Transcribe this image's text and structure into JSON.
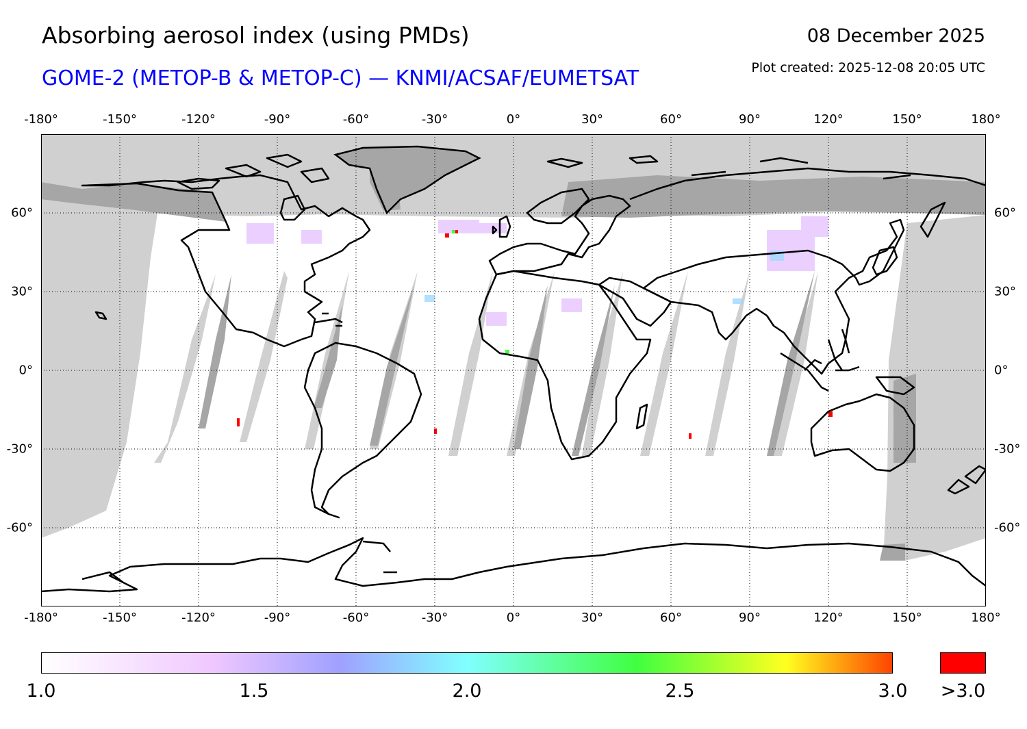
{
  "header": {
    "title": "Absorbing aerosol index (using PMDs)",
    "subtitle": "GOME-2 (METOP-B & METOP-C) — KNMI/ACSAF/EUMETSAT",
    "date": "08 December 2025",
    "created": "Plot created: 2025-12-08 20:05 UTC"
  },
  "map": {
    "projection": "equirectangular",
    "lon_range": [
      -180,
      180
    ],
    "lat_range": [
      -90,
      90
    ],
    "lon_ticks": [
      -180,
      -150,
      -120,
      -90,
      -60,
      -30,
      0,
      30,
      60,
      90,
      120,
      150,
      180
    ],
    "lon_labels": [
      "-180°",
      "-150°",
      "-120°",
      "-90°",
      "-60°",
      "-30°",
      "0°",
      "30°",
      "60°",
      "90°",
      "120°",
      "150°",
      "180°"
    ],
    "lat_ticks": [
      60,
      30,
      0,
      -30,
      -60
    ],
    "lat_labels": [
      "60°",
      "30°",
      "0°",
      "-30°",
      "-60°"
    ],
    "grid": "dotted",
    "colors": {
      "no_data": "#d0d0d0",
      "overlap_dark": "#a6a6a6",
      "coastline": "#000000"
    }
  },
  "colorbar": {
    "stops": [
      {
        "value": 1.0,
        "color": "#ffffff"
      },
      {
        "value": 1.4,
        "color": "#f0c8ff"
      },
      {
        "value": 1.7,
        "color": "#a0a0ff"
      },
      {
        "value": 2.0,
        "color": "#80ffff"
      },
      {
        "value": 2.4,
        "color": "#40ff40"
      },
      {
        "value": 2.75,
        "color": "#ffff20"
      },
      {
        "value": 3.0,
        "color": "#ff4400"
      }
    ],
    "labels": [
      {
        "value": 1.0,
        "text": "1.0"
      },
      {
        "value": 1.5,
        "text": "1.5"
      },
      {
        "value": 2.0,
        "text": "2.0"
      },
      {
        "value": 2.5,
        "text": "2.5"
      },
      {
        "value": 3.0,
        "text": "3.0"
      }
    ],
    "over_label": ">3.0",
    "over_color": "#ff0000",
    "range": [
      1.0,
      3.0
    ]
  }
}
